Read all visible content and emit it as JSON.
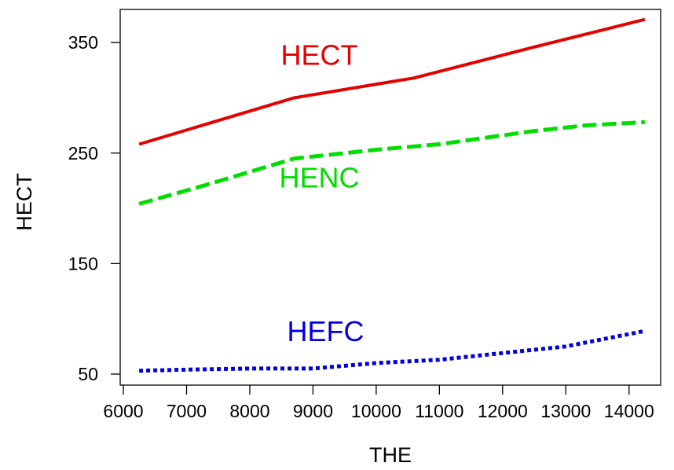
{
  "chart_data": {
    "type": "line",
    "xlabel": "THE",
    "ylabel": "HECT",
    "xlim": [
      5950,
      14500
    ],
    "ylim": [
      40,
      380
    ],
    "xticks": [
      6000,
      7000,
      8000,
      9000,
      10000,
      11000,
      12000,
      13000,
      14000
    ],
    "yticks": [
      50,
      150,
      250,
      350
    ],
    "series": [
      {
        "name": "HECT",
        "color": "#e60000",
        "dash": "solid",
        "x": [
          6250,
          8700,
          10600,
          12500,
          14250
        ],
        "y": [
          258,
          300,
          318,
          346,
          371
        ]
      },
      {
        "name": "HENC",
        "color": "#00dd00",
        "dash": "dashed",
        "x": [
          6250,
          7300,
          8700,
          10000,
          11000,
          12500,
          13300,
          14250
        ],
        "y": [
          204,
          221,
          245,
          253,
          258,
          270,
          275,
          278
        ]
      },
      {
        "name": "HEFC",
        "color": "#0000dd",
        "dash": "dotted",
        "x": [
          6250,
          7000,
          8000,
          9000,
          10000,
          11000,
          12000,
          13000,
          14250
        ],
        "y": [
          53,
          54,
          55,
          55,
          60,
          63,
          69,
          75,
          89
        ]
      }
    ],
    "annotations": [
      {
        "text": "HECT",
        "x": 9100,
        "y": 330,
        "color": "#e60000"
      },
      {
        "text": "HENC",
        "x": 9100,
        "y": 219,
        "color": "#00dd00"
      },
      {
        "text": "HEFC",
        "x": 9200,
        "y": 80,
        "color": "#0000dd"
      }
    ]
  }
}
